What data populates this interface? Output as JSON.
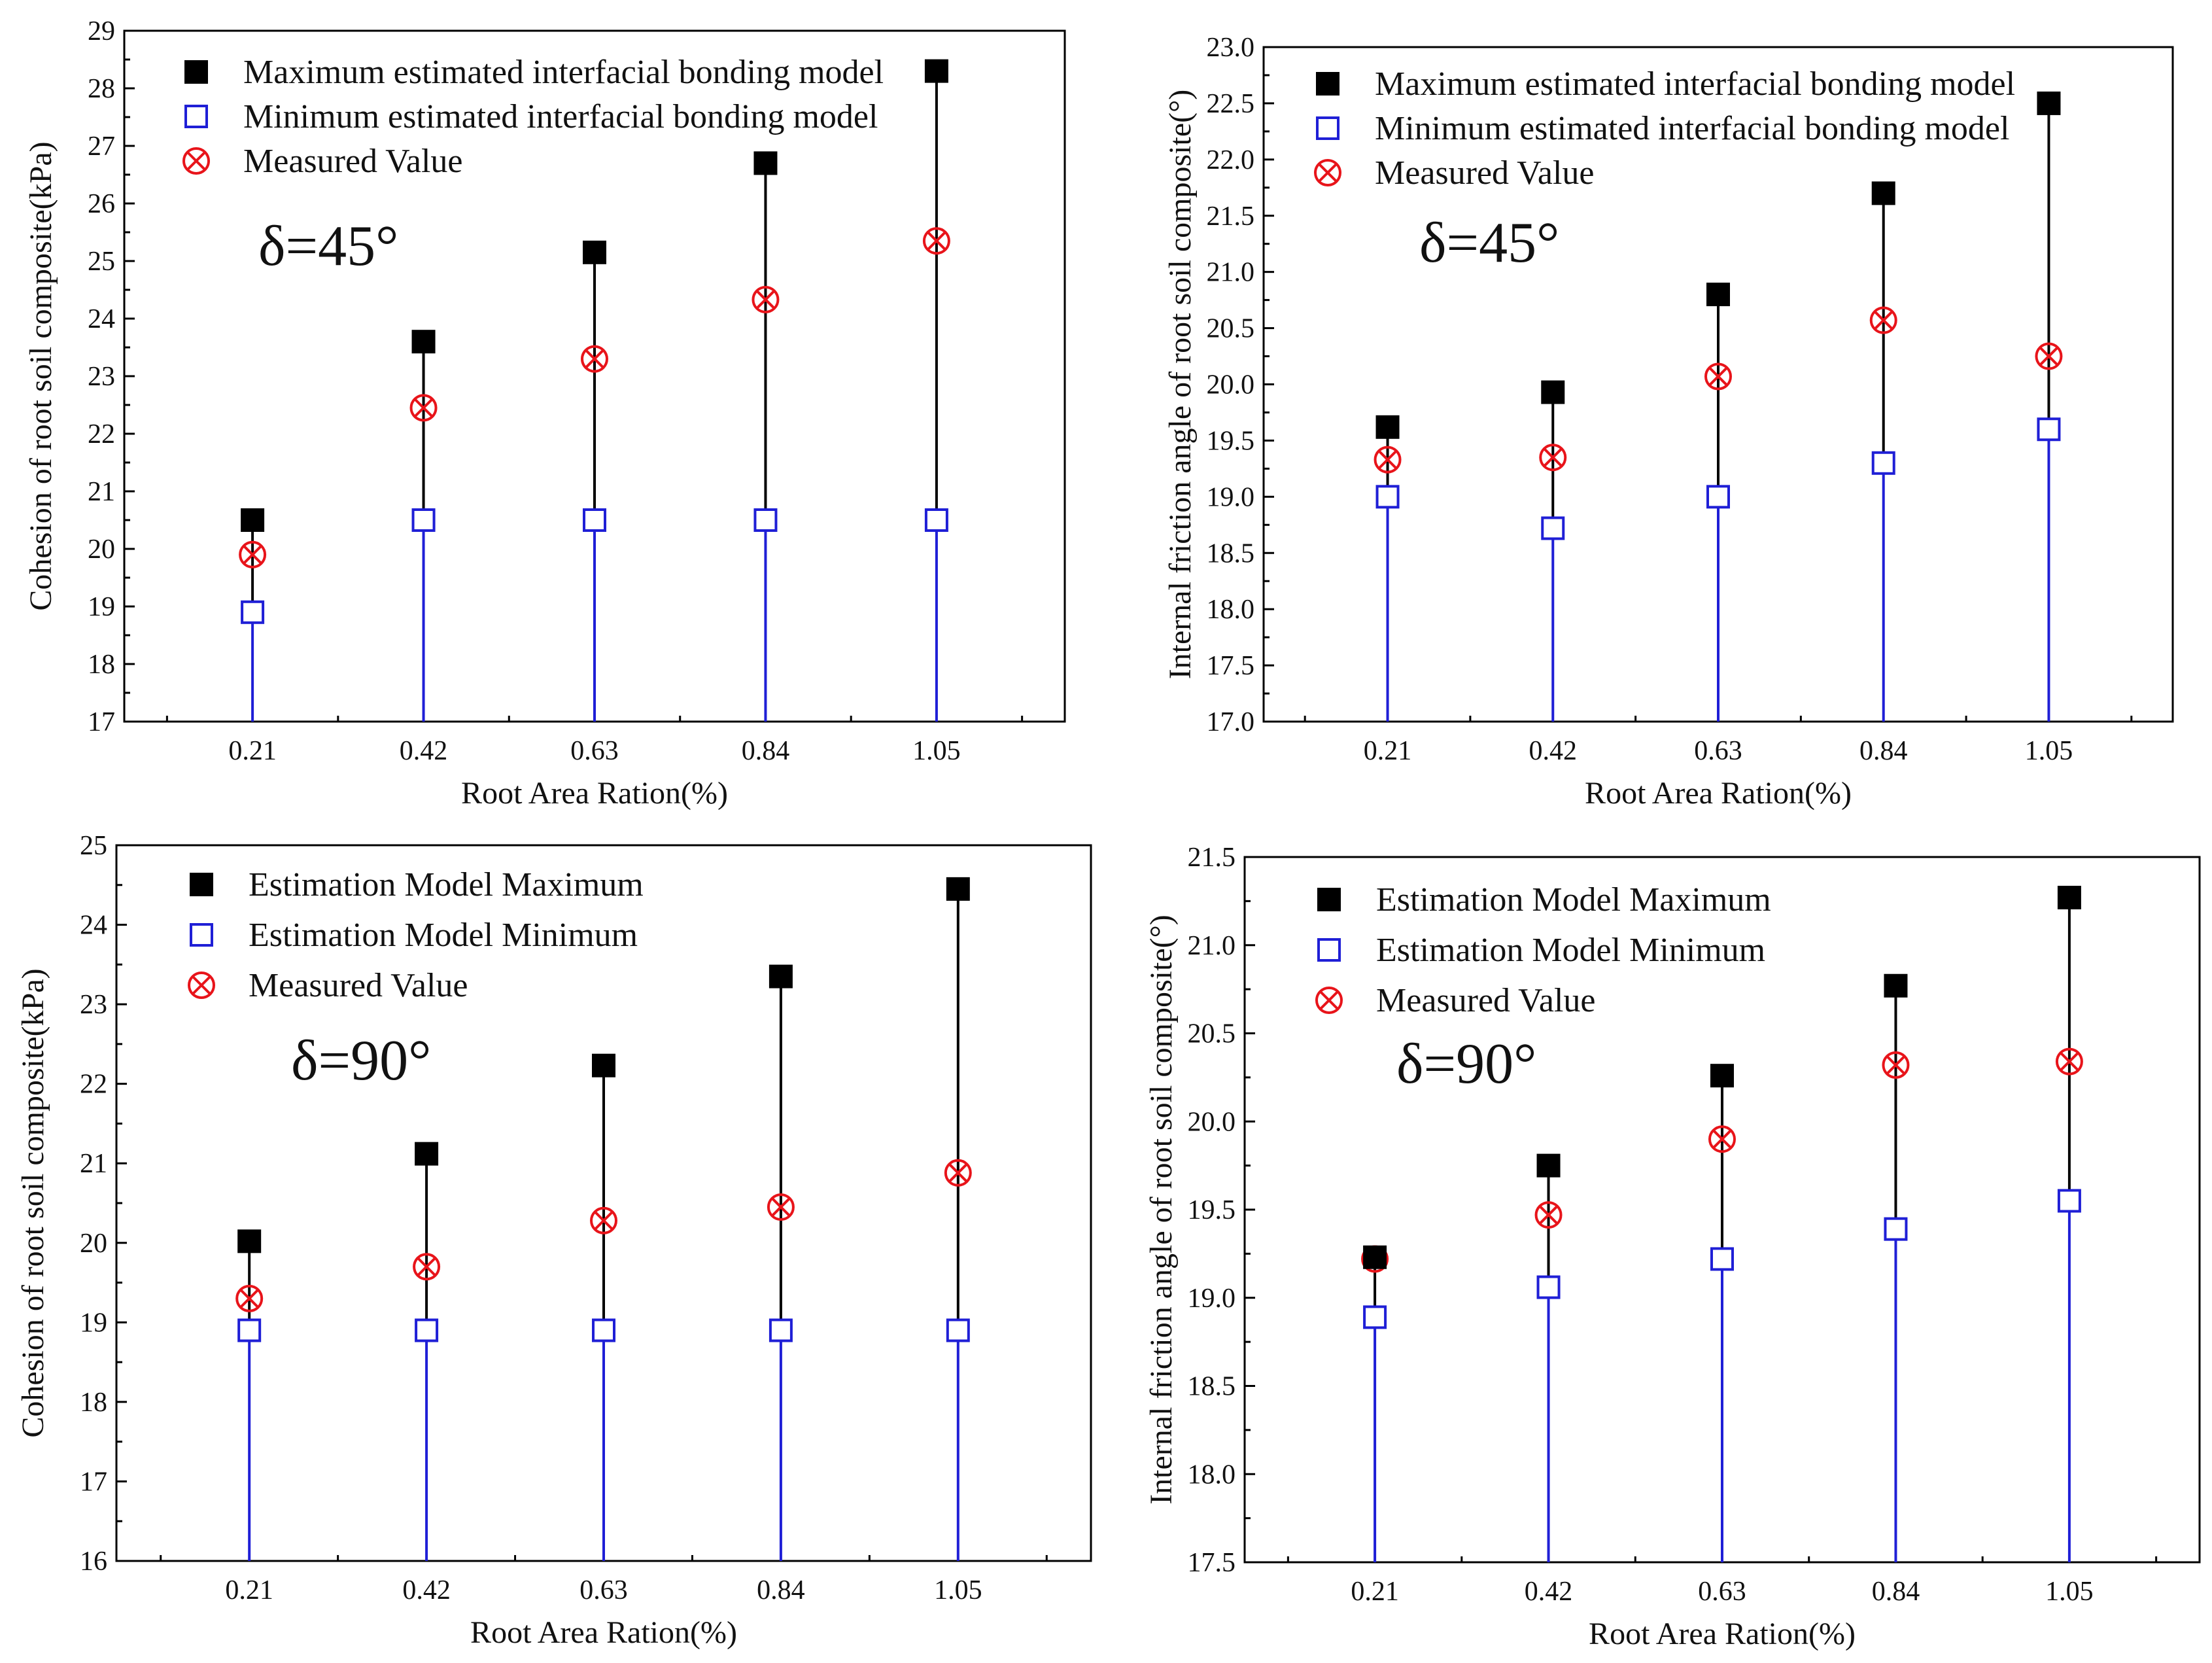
{
  "chart_data": [
    {
      "type": "scatter",
      "categories": [
        "0.21",
        "0.42",
        "0.63",
        "0.84",
        "1.05"
      ],
      "xlabel": "Root Area Ration(%)",
      "ylabel": "Cohesion of root soil composite(kPa)",
      "ylim": [
        17,
        29
      ],
      "yticks": [
        "17",
        "18",
        "19",
        "20",
        "21",
        "22",
        "23",
        "24",
        "25",
        "26",
        "27",
        "28",
        "29"
      ],
      "annotation": "δ=45°",
      "legend_position": "top-left",
      "grid": false,
      "series": [
        {
          "name": "Maximum estimated interfacial bonding model",
          "color": "#000000",
          "marker": "filled-square",
          "values": [
            20.5,
            23.6,
            25.15,
            26.7,
            28.3
          ]
        },
        {
          "name": "Minimum estimated interfacial bonding model",
          "color": "#1f1fd6",
          "marker": "open-square",
          "values": [
            18.9,
            20.5,
            20.5,
            20.5,
            20.5
          ]
        },
        {
          "name": "Measured Value",
          "color": "#e8141a",
          "marker": "circled-x",
          "values": [
            19.9,
            22.45,
            23.3,
            24.33,
            25.35
          ]
        }
      ]
    },
    {
      "type": "scatter",
      "categories": [
        "0.21",
        "0.42",
        "0.63",
        "0.84",
        "1.05"
      ],
      "xlabel": "Root Area Ration(%)",
      "ylabel": "Internal friction angle of root soil composite(°)",
      "ylim": [
        17.0,
        23.0
      ],
      "yticks": [
        "17.0",
        "17.5",
        "18.0",
        "18.5",
        "19.0",
        "19.5",
        "20.0",
        "20.5",
        "21.0",
        "21.5",
        "22.0",
        "22.5",
        "23.0"
      ],
      "annotation": "δ=45°",
      "legend_position": "top-left",
      "grid": false,
      "series": [
        {
          "name": "Maximum estimated interfacial bonding model",
          "color": "#000000",
          "marker": "filled-square",
          "values": [
            19.62,
            19.93,
            20.8,
            21.7,
            22.5
          ]
        },
        {
          "name": "Minimum estimated interfacial  bonding model",
          "color": "#1f1fd6",
          "marker": "open-square",
          "values": [
            19.0,
            18.72,
            19.0,
            19.3,
            19.6
          ]
        },
        {
          "name": "Measured Value",
          "color": "#e8141a",
          "marker": "circled-x",
          "values": [
            19.33,
            19.35,
            20.07,
            20.57,
            20.25
          ]
        }
      ]
    },
    {
      "type": "scatter",
      "categories": [
        "0.21",
        "0.42",
        "0.63",
        "0.84",
        "1.05"
      ],
      "xlabel": "Root Area Ration(%)",
      "ylabel": "Cohesion of root soil composite(kPa)",
      "ylim": [
        16,
        25
      ],
      "yticks": [
        "16",
        "17",
        "18",
        "19",
        "20",
        "21",
        "22",
        "23",
        "24",
        "25"
      ],
      "annotation": "δ=90°",
      "legend_position": "top-left",
      "grid": false,
      "series": [
        {
          "name": "Estimation Model Maximum",
          "color": "#000000",
          "marker": "filled-square",
          "values": [
            20.02,
            21.12,
            22.23,
            23.35,
            24.45
          ]
        },
        {
          "name": "Estimation Model Minimum",
          "color": "#1f1fd6",
          "marker": "open-square",
          "values": [
            18.9,
            18.9,
            18.9,
            18.9,
            18.9
          ]
        },
        {
          "name": "Measured Value",
          "color": "#e8141a",
          "marker": "circled-x",
          "values": [
            19.3,
            19.7,
            20.28,
            20.45,
            20.88
          ]
        }
      ]
    },
    {
      "type": "scatter",
      "categories": [
        "0.21",
        "0.42",
        "0.63",
        "0.84",
        "1.05"
      ],
      "xlabel": "Root Area Ration(%)",
      "ylabel": "Internal friction angle of root soil composite(°)",
      "ylim": [
        17.5,
        21.5
      ],
      "yticks": [
        "17.5",
        "18.0",
        "18.5",
        "19.0",
        "19.5",
        "20.0",
        "20.5",
        "21.0",
        "21.5"
      ],
      "annotation": "δ=90°",
      "legend_position": "top-left",
      "grid": false,
      "series": [
        {
          "name": "Estimation Model Maximum",
          "color": "#000000",
          "marker": "filled-square",
          "values": [
            19.23,
            19.75,
            20.26,
            20.77,
            21.27
          ]
        },
        {
          "name": "Estimation Model Minimum",
          "color": "#1f1fd6",
          "marker": "open-square",
          "values": [
            18.89,
            19.06,
            19.22,
            19.39,
            19.55
          ]
        },
        {
          "name": "Measured Value",
          "color": "#e8141a",
          "marker": "circled-x",
          "values": [
            19.22,
            19.47,
            19.9,
            20.32,
            20.34
          ]
        }
      ]
    }
  ]
}
